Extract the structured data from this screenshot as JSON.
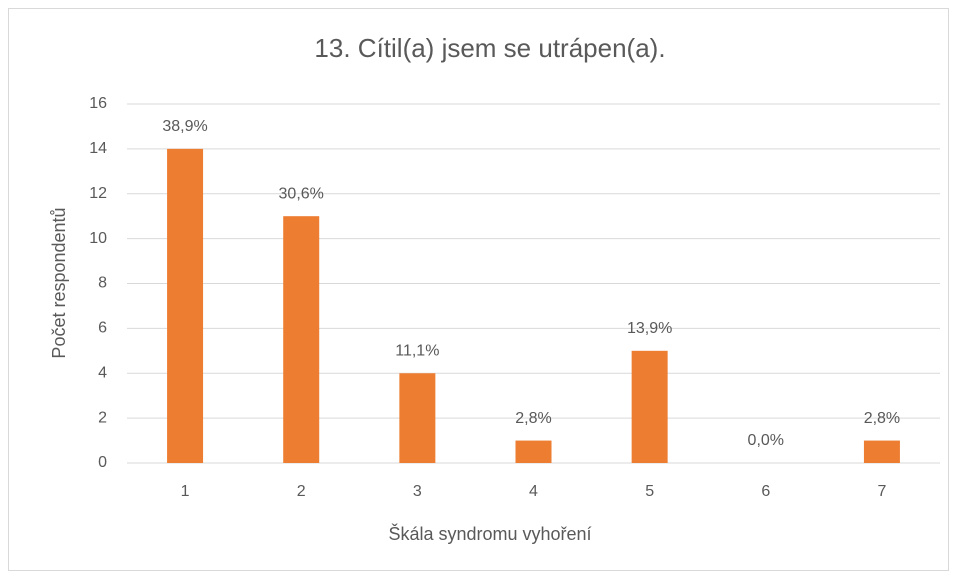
{
  "chart_data": {
    "type": "bar",
    "title": "13. Cítil(a) jsem se utrápen(a).",
    "x_label": "Škála syndromu vyhoření",
    "y_label": "Počet respondentů",
    "categories": [
      "1",
      "2",
      "3",
      "4",
      "5",
      "6",
      "7"
    ],
    "values": [
      14,
      11,
      4,
      1,
      5,
      0,
      1
    ],
    "value_labels": [
      "38,9%",
      "30,6%",
      "11,1%",
      "2,8%",
      "13,9%",
      "0,0%",
      "2,8%"
    ],
    "color": "#ed7d31",
    "ylim": [
      0,
      16
    ],
    "yticks": [
      0,
      2,
      4,
      6,
      8,
      10,
      12,
      14,
      16
    ],
    "grid": true
  }
}
